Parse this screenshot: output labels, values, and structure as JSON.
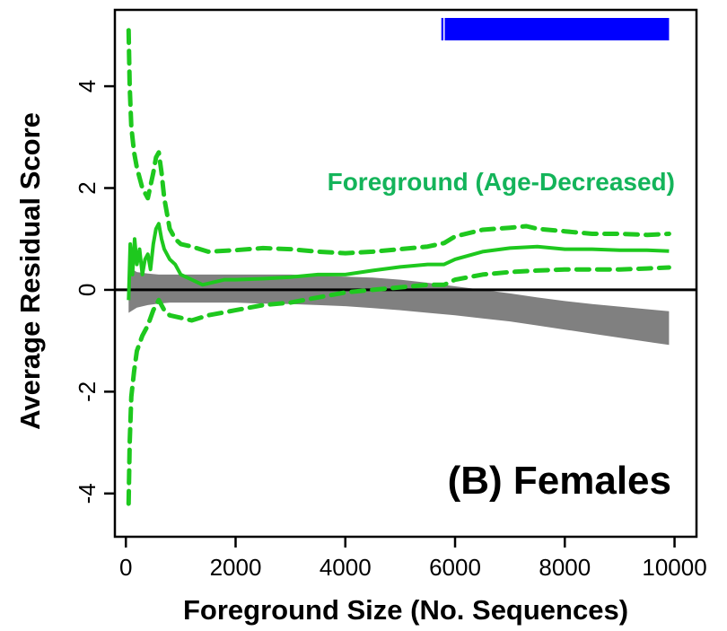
{
  "chart_data": {
    "type": "line",
    "title": "",
    "xlabel": "Foreground Size (No. Sequences)",
    "ylabel": "Average Residual Score",
    "xlim": [
      -200,
      10400
    ],
    "ylim": [
      -4.85,
      5.5
    ],
    "xticks": [
      0,
      2000,
      4000,
      6000,
      8000,
      10000
    ],
    "xtick_labels": [
      "0",
      "2000",
      "4000",
      "6000",
      "8000",
      "10000"
    ],
    "yticks": [
      -4,
      -2,
      0,
      2,
      4
    ],
    "ytick_labels": [
      "-4",
      "-2",
      "0",
      "2",
      "4"
    ],
    "grid": false,
    "legend": "none",
    "colors": {
      "foreground": "#1ec81e",
      "annotation": "#14b45a",
      "background_band": "#808080",
      "significance": "#0000ff",
      "zero_line": "#000000"
    },
    "annotations": {
      "series_label": "Foreground (Age-Decreased)",
      "panel_label": "(B) Females"
    },
    "significance_bar": {
      "x_start": 5750,
      "x_end": 9900,
      "color": "#0000ff"
    },
    "zero_line": 0,
    "background_band": {
      "x": [
        50,
        200,
        400,
        600,
        800,
        1000,
        1500,
        2000,
        2500,
        3000,
        3500,
        4000,
        4500,
        5000,
        5500,
        6000,
        6500,
        7000,
        7500,
        8000,
        8500,
        9000,
        9500,
        9900
      ],
      "upper": [
        0.45,
        0.35,
        0.32,
        0.3,
        0.3,
        0.3,
        0.3,
        0.3,
        0.3,
        0.3,
        0.28,
        0.26,
        0.24,
        0.2,
        0.14,
        0.07,
        0.0,
        -0.07,
        -0.15,
        -0.22,
        -0.28,
        -0.33,
        -0.38,
        -0.42
      ],
      "lower": [
        -0.45,
        -0.35,
        -0.3,
        -0.27,
        -0.25,
        -0.25,
        -0.25,
        -0.25,
        -0.27,
        -0.28,
        -0.3,
        -0.32,
        -0.36,
        -0.4,
        -0.45,
        -0.5,
        -0.56,
        -0.62,
        -0.7,
        -0.78,
        -0.86,
        -0.94,
        -1.02,
        -1.08
      ]
    },
    "series": [
      {
        "role": "mean",
        "style": "solid",
        "x": [
          50,
          80,
          120,
          160,
          200,
          250,
          300,
          350,
          400,
          450,
          500,
          550,
          600,
          650,
          700,
          800,
          900,
          1000,
          1200,
          1400,
          1600,
          1800,
          2000,
          2500,
          3000,
          3500,
          4000,
          4500,
          5000,
          5500,
          5800,
          6000,
          6500,
          7000,
          7500,
          8000,
          8500,
          9000,
          9500,
          9900
        ],
        "y": [
          -0.2,
          0.9,
          0.3,
          1.0,
          0.5,
          0.8,
          0.3,
          0.6,
          0.7,
          0.4,
          0.9,
          1.2,
          1.3,
          1.0,
          0.8,
          0.6,
          0.5,
          0.3,
          0.2,
          0.1,
          0.15,
          0.2,
          0.2,
          0.22,
          0.25,
          0.3,
          0.3,
          0.38,
          0.45,
          0.5,
          0.5,
          0.6,
          0.75,
          0.82,
          0.85,
          0.8,
          0.8,
          0.78,
          0.78,
          0.76
        ]
      },
      {
        "role": "upper",
        "style": "dashed",
        "x": [
          50,
          70,
          100,
          150,
          200,
          300,
          400,
          500,
          550,
          600,
          650,
          700,
          800,
          900,
          1000,
          1200,
          1500,
          2000,
          2500,
          3000,
          3500,
          4000,
          4500,
          5000,
          5500,
          5800,
          6000,
          6500,
          7000,
          7300,
          7500,
          8000,
          8500,
          9000,
          9500,
          9900
        ],
        "y": [
          5.1,
          4.0,
          3.2,
          2.7,
          2.4,
          2.0,
          1.8,
          2.3,
          2.6,
          2.7,
          2.3,
          1.8,
          1.2,
          1.0,
          0.9,
          0.85,
          0.75,
          0.78,
          0.82,
          0.8,
          0.75,
          0.72,
          0.75,
          0.8,
          0.85,
          0.92,
          1.05,
          1.18,
          1.22,
          1.25,
          1.2,
          1.15,
          1.1,
          1.1,
          1.08,
          1.1
        ]
      },
      {
        "role": "lower",
        "style": "dashed",
        "x": [
          50,
          70,
          100,
          150,
          200,
          300,
          400,
          500,
          600,
          700,
          800,
          1000,
          1200,
          1500,
          2000,
          2500,
          3000,
          3500,
          4000,
          4500,
          5000,
          5500,
          5800,
          6000,
          6500,
          7000,
          7500,
          8000,
          8500,
          9000,
          9500,
          9900
        ],
        "y": [
          -4.2,
          -3.0,
          -2.1,
          -1.6,
          -1.2,
          -0.9,
          -0.7,
          -0.4,
          -0.2,
          -0.4,
          -0.5,
          -0.55,
          -0.6,
          -0.5,
          -0.4,
          -0.3,
          -0.25,
          -0.15,
          -0.05,
          0.0,
          0.05,
          0.1,
          0.1,
          0.2,
          0.3,
          0.35,
          0.38,
          0.4,
          0.4,
          0.4,
          0.42,
          0.44
        ]
      }
    ]
  }
}
